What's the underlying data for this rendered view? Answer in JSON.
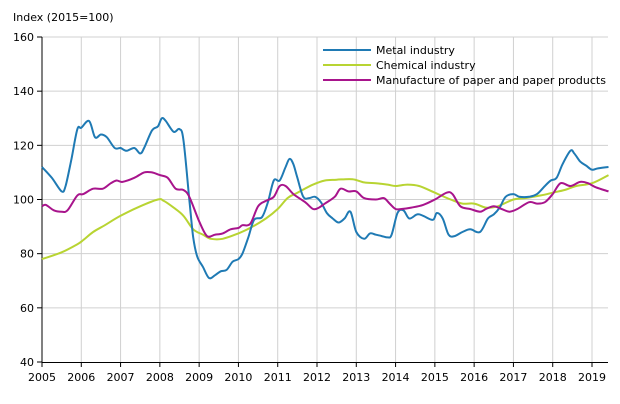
{
  "chart_data": {
    "type": "line",
    "title": "",
    "ylabel": "Index (2015=100)",
    "xlabel": "",
    "xlim": [
      2005,
      2019.42
    ],
    "ylim": [
      40,
      160
    ],
    "yticks": [
      40,
      60,
      80,
      100,
      120,
      140,
      160
    ],
    "xticks": [
      2005,
      2006,
      2007,
      2008,
      2009,
      2010,
      2011,
      2012,
      2013,
      2014,
      2015,
      2016,
      2017,
      2018,
      2019
    ],
    "xtick_labels": [
      "2005",
      "2006",
      "2007",
      "2008",
      "2009",
      "2010",
      "2011",
      "2012",
      "2013",
      "2014",
      "2015",
      "2016",
      "2017",
      "2018",
      "2019"
    ],
    "grid": true,
    "legend_position": "top-right",
    "series": [
      {
        "name": "Metal industry",
        "color": "#1f7ab4",
        "x": [
          2005.0,
          2005.25,
          2005.5,
          2005.6,
          2005.75,
          2005.9,
          2006.0,
          2006.2,
          2006.35,
          2006.5,
          2006.65,
          2006.85,
          2007.0,
          2007.15,
          2007.35,
          2007.5,
          2007.6,
          2007.8,
          2007.95,
          2008.05,
          2008.15,
          2008.35,
          2008.5,
          2008.6,
          2008.75,
          2008.85,
          2008.95,
          2009.1,
          2009.25,
          2009.4,
          2009.55,
          2009.7,
          2009.85,
          2010.0,
          2010.1,
          2010.25,
          2010.4,
          2010.6,
          2010.75,
          2010.9,
          2011.05,
          2011.2,
          2011.3,
          2011.4,
          2011.5,
          2011.65,
          2011.8,
          2011.95,
          2012.1,
          2012.25,
          2012.4,
          2012.55,
          2012.7,
          2012.85,
          2013.0,
          2013.2,
          2013.35,
          2013.5,
          2013.65,
          2013.8,
          2013.9,
          2014.05,
          2014.2,
          2014.35,
          2014.55,
          2014.7,
          2014.95,
          2015.05,
          2015.2,
          2015.35,
          2015.5,
          2015.7,
          2015.9,
          2016.15,
          2016.35,
          2016.5,
          2016.65,
          2016.8,
          2017.0,
          2017.15,
          2017.4,
          2017.6,
          2017.8,
          2017.95,
          2018.1,
          2018.25,
          2018.45,
          2018.55,
          2018.7,
          2018.85,
          2019.0,
          2019.15,
          2019.42
        ],
        "y": [
          112,
          108,
          103,
          105,
          115,
          126,
          126.5,
          129,
          123,
          124,
          123,
          119,
          119,
          118,
          119,
          117,
          119,
          125.5,
          127,
          130,
          129,
          125,
          126,
          122,
          100,
          86,
          79,
          75,
          71,
          72,
          73.5,
          74,
          77,
          78,
          80,
          86,
          92.5,
          93.5,
          99,
          107,
          107,
          112,
          115,
          113,
          108,
          101,
          100.5,
          101,
          99,
          95,
          93,
          91.5,
          93,
          95.5,
          88,
          85.5,
          87.5,
          87,
          86.5,
          86,
          87,
          95,
          96,
          93,
          94.5,
          94,
          92.5,
          95,
          93,
          87,
          86.5,
          88,
          89,
          88,
          93,
          94.5,
          97,
          101,
          102,
          101,
          101,
          102,
          105,
          107,
          108,
          113,
          118,
          117,
          114,
          112.5,
          111,
          111.5,
          112
        ]
      },
      {
        "name": "Chemical industry",
        "color": "#b8d432",
        "x": [
          2005.0,
          2005.5,
          2005.9,
          2006.05,
          2006.3,
          2006.6,
          2007.0,
          2007.5,
          2007.95,
          2008.1,
          2008.35,
          2008.6,
          2008.85,
          2009.1,
          2009.3,
          2009.6,
          2010.0,
          2010.3,
          2010.7,
          2011.0,
          2011.25,
          2011.5,
          2011.9,
          2012.2,
          2012.5,
          2012.9,
          2013.2,
          2013.5,
          2013.8,
          2014.0,
          2014.3,
          2014.6,
          2015.0,
          2015.4,
          2015.7,
          2016.0,
          2016.3,
          2016.6,
          2017.0,
          2017.3,
          2017.7,
          2018.0,
          2018.3,
          2018.6,
          2019.0,
          2019.42
        ],
        "y": [
          78,
          80.5,
          83.5,
          85,
          88,
          90.5,
          94,
          97.5,
          100,
          99.5,
          97,
          94,
          89,
          87,
          85.5,
          85.5,
          87.5,
          89.5,
          93,
          96.5,
          100.5,
          102.5,
          105.5,
          107,
          107.3,
          107.5,
          106.3,
          106,
          105.5,
          105,
          105.5,
          105,
          102.5,
          100,
          98.5,
          98.5,
          97,
          97.5,
          100,
          100.5,
          101.5,
          102.5,
          103.5,
          105,
          106,
          109
        ]
      },
      {
        "name": "Manufacture of paper and paper products",
        "color": "#a8148c",
        "x": [
          2005.0,
          2005.1,
          2005.3,
          2005.5,
          2005.65,
          2005.9,
          2006.05,
          2006.3,
          2006.55,
          2006.75,
          2006.9,
          2007.05,
          2007.35,
          2007.6,
          2007.8,
          2008.0,
          2008.2,
          2008.4,
          2008.6,
          2008.75,
          2009.0,
          2009.2,
          2009.4,
          2009.6,
          2009.8,
          2010.0,
          2010.1,
          2010.3,
          2010.5,
          2010.7,
          2010.9,
          2011.05,
          2011.2,
          2011.4,
          2011.7,
          2011.9,
          2012.05,
          2012.2,
          2012.45,
          2012.6,
          2012.8,
          2013.0,
          2013.2,
          2013.5,
          2013.7,
          2013.85,
          2014.0,
          2014.15,
          2014.4,
          2014.7,
          2015.0,
          2015.3,
          2015.45,
          2015.65,
          2015.9,
          2016.15,
          2016.3,
          2016.5,
          2016.7,
          2016.9,
          2017.1,
          2017.4,
          2017.6,
          2017.8,
          2018.0,
          2018.2,
          2018.45,
          2018.7,
          2018.9,
          2019.1,
          2019.42
        ],
        "y": [
          97.5,
          98,
          96,
          95.5,
          96,
          101.5,
          102,
          104,
          104,
          106,
          107,
          106.5,
          108,
          110,
          110,
          109,
          108,
          104,
          103.5,
          101,
          92,
          86.5,
          87,
          87.5,
          89,
          89.5,
          90.5,
          91,
          97.5,
          99.5,
          101,
          105,
          105,
          102,
          99,
          96.5,
          97,
          98.5,
          101,
          104,
          103,
          103,
          100.5,
          100,
          100.5,
          98.5,
          96.5,
          96.5,
          97,
          98,
          100,
          102.5,
          102,
          97.5,
          96.5,
          95.5,
          96.5,
          97.5,
          96.5,
          95.5,
          96.5,
          99,
          98.5,
          99,
          102,
          106,
          105,
          106.5,
          106,
          104.5,
          103
        ]
      }
    ]
  }
}
